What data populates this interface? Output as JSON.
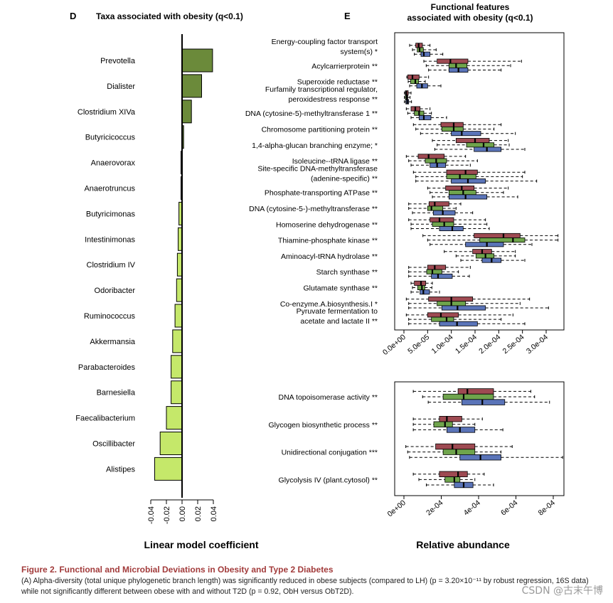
{
  "figure": {
    "caption_title": "Figure 2. Functional and Microbial Deviations in Obesity and Type 2 Diabetes",
    "caption_text": "(A) Alpha-diversity (total unique phylogenetic branch length) was significantly reduced in obese subjects (compared to LH) (p = 3.20×10⁻¹¹ by robust regression, 16S data) while not significantly different between obese with and without T2D (p = 0.92, ObH versus ObT2D).",
    "watermark": "CSDN @古末午博"
  },
  "colors": {
    "dark_green": "#6b8a3a",
    "light_green": "#c5e86a",
    "box_red": "#9e4a52",
    "box_green": "#6fa44c",
    "box_blue": "#5a74b8"
  },
  "chart_data": [
    {
      "type": "bar",
      "orientation": "horizontal",
      "panel_letter": "D",
      "title": "Taxa associated with obesity (q<0.1)",
      "xlabel": "Linear model coefficient",
      "xlim": [
        -0.045,
        0.045
      ],
      "xticks": [
        -0.04,
        -0.02,
        0.0,
        0.02,
        0.04
      ],
      "xtick_labels": [
        "-0.04",
        "-0.02",
        "0.00",
        "0.02",
        "0.04"
      ],
      "categories": [
        "Prevotella",
        "Dialister",
        "Clostridium XIVa",
        "Butyricicoccus",
        "Anaerovorax",
        "Anaerotruncus",
        "Butyricimonas",
        "Intestinimonas",
        "Clostridium IV",
        "Odoribacter",
        "Ruminococcus",
        "Akkermansia",
        "Parabacteroides",
        "Barnesiella",
        "Faecalibacterium",
        "Oscillibacter",
        "Alistipes"
      ],
      "values": [
        0.039,
        0.025,
        0.012,
        0.002,
        -0.001,
        -0.001,
        -0.004,
        -0.005,
        -0.006,
        -0.007,
        -0.009,
        -0.012,
        -0.014,
        -0.014,
        -0.02,
        -0.028,
        -0.035
      ]
    },
    {
      "type": "boxplot",
      "panel_letter": "E",
      "title": "Functional features\nassociated with obesity (q<0.1)",
      "xlabel": "",
      "xlim": [
        0,
        0.00032
      ],
      "xticks": [
        0,
        5e-05,
        0.0001,
        0.00015,
        0.0002,
        0.00025,
        0.0003
      ],
      "xtick_labels": [
        "0.0e+00",
        "5.0e-05",
        "1.0e-04",
        "1.5e-04",
        "2.0e-04",
        "2.5e-04",
        "3.0e-04"
      ],
      "groups": [
        "red",
        "green",
        "blue"
      ],
      "features": [
        {
          "label": "Energy-coupling factor transport\nsystem(s) *",
          "boxes": [
            [
              1.2e-05,
              2.5e-05,
              3.1e-05,
              3.9e-05,
              5.5e-05
            ],
            [
              1.8e-05,
              2.8e-05,
              3.3e-05,
              4.1e-05,
              6.8e-05
            ],
            [
              2.2e-05,
              3.6e-05,
              4.2e-05,
              5.5e-05,
              8.2e-05
            ]
          ]
        },
        {
          "label": "Acylcarrierprotein **",
          "boxes": [
            [
              4.2e-05,
              7e-05,
              9.8e-05,
              0.000135,
              0.000248
            ],
            [
              4.7e-05,
              9.5e-05,
              0.00011,
              0.000133,
              0.000225
            ],
            [
              5.2e-05,
              9.5e-05,
              0.000115,
              0.000135,
              0.000205
            ]
          ]
        },
        {
          "label": "Superoxide reductase **",
          "boxes": [
            [
              6e-06,
              8e-06,
              1.8e-05,
              3.2e-05,
              5.2e-05
            ],
            [
              9e-06,
              1.4e-05,
              2.4e-05,
              3.1e-05,
              4.5e-05
            ],
            [
              1.2e-05,
              2.7e-05,
              3.8e-05,
              5e-05,
              7.8e-05
            ]
          ]
        },
        {
          "label": "Furfamily transcriptional regulator,\nperoxidestress response **",
          "boxes": [
            [
              1e-06,
              3e-06,
              5e-06,
              9e-06,
              1.5e-05
            ],
            [
              1e-06,
              3e-06,
              6e-06,
              8e-06,
              1.3e-05
            ],
            [
              1e-06,
              4e-06,
              7e-06,
              1e-05,
              1.6e-05
            ]
          ]
        },
        {
          "label": "DNA (cytosine-5)-methyltransferase 1 **",
          "boxes": [
            [
              5e-06,
              1.5e-05,
              2.4e-05,
              3.4e-05,
              5.5e-05
            ],
            [
              8e-06,
              2.2e-05,
              3.2e-05,
              4.2e-05,
              5.8e-05
            ],
            [
              1.5e-05,
              3.2e-05,
              4.2e-05,
              5.7e-05,
              9e-05
            ]
          ]
        },
        {
          "label": "Chromosome partitioning protein **",
          "boxes": [
            [
              2e-05,
              7.8e-05,
              0.000105,
              0.000125,
              0.000205
            ],
            [
              2.5e-05,
              8e-05,
              0.000105,
              0.000125,
              0.00019
            ],
            [
              3.5e-05,
              0.0001,
              0.000122,
              0.000162,
              0.000235
            ]
          ]
        },
        {
          "label": "1,4-alpha-glucan branching enzyme; *",
          "boxes": [
            [
              6e-05,
              0.00011,
              0.00015,
              0.00018,
              0.00022
            ],
            [
              7e-05,
              0.000132,
              0.000168,
              0.00019,
              0.000222
            ],
            [
              6.5e-05,
              0.000148,
              0.000175,
              0.000205,
              0.000255
            ]
          ]
        },
        {
          "label": "Isoleucine--tRNA ligase **",
          "boxes": [
            [
              5e-06,
              3e-05,
              5.2e-05,
              8.5e-05,
              0.00013
            ],
            [
              1e-05,
              4.5e-05,
              6.8e-05,
              9e-05,
              0.000155
            ],
            [
              1.5e-05,
              5.5e-05,
              7e-05,
              8.8e-05,
              0.00014
            ]
          ]
        },
        {
          "label": "Site-specific DNA-methyltransferase\n(adenine-specific) **",
          "boxes": [
            [
              2e-05,
              9e-05,
              0.00013,
              0.000155,
              0.000255
            ],
            [
              2.5e-05,
              9e-05,
              0.000118,
              0.000152,
              0.00025
            ],
            [
              2.5e-05,
              0.0001,
              0.000135,
              0.000172,
              0.00028
            ]
          ]
        },
        {
          "label": "Phosphate-transporting ATPase **",
          "boxes": [
            [
              5e-05,
              8.8e-05,
              0.000122,
              0.000148,
              0.00022
            ],
            [
              5.5e-05,
              9.5e-05,
              0.000125,
              0.000152,
              0.00021
            ],
            [
              6e-05,
              9.5e-05,
              0.00013,
              0.000175,
              0.00024
            ]
          ]
        },
        {
          "label": "DNA (cytosine-5-)-methyltransferase **",
          "boxes": [
            [
              1e-05,
              5.3e-05,
              6.5e-05,
              9.5e-05,
              0.00012
            ],
            [
              1e-05,
              5e-05,
              5.8e-05,
              8.2e-05,
              0.00011
            ],
            [
              1.8e-05,
              6.2e-05,
              8.2e-05,
              0.000108,
              0.000145
            ]
          ]
        },
        {
          "label": "Homoserine dehydrogenase **",
          "boxes": [
            [
              1e-05,
              5.5e-05,
              7.5e-05,
              0.000105,
              0.000172
            ],
            [
              1.5e-05,
              6e-05,
              8.5e-05,
              0.000105,
              0.000175
            ],
            [
              1.5e-05,
              7.5e-05,
              0.000102,
              0.000125,
              0.00018
            ]
          ]
        },
        {
          "label": "Thiamine-phosphate kinase **",
          "boxes": [
            [
              4e-05,
              0.000148,
              0.00021,
              0.000245,
              0.000325
            ],
            [
              5e-05,
              0.00016,
              0.00023,
              0.000255,
              0.000325
            ],
            [
              5.5e-05,
              0.00013,
              0.000175,
              0.00021,
              0.00027
            ]
          ]
        },
        {
          "label": "Aminoacyl-tRNA hydrolase **",
          "boxes": [
            [
              8.5e-05,
              0.000145,
              0.000165,
              0.000185,
              0.000235
            ],
            [
              0.00011,
              0.000152,
              0.000172,
              0.00019,
              0.000235
            ],
            [
              0.00012,
              0.000165,
              0.000185,
              0.000205,
              0.000255
            ]
          ]
        },
        {
          "label": "Starch synthase **",
          "boxes": [
            [
              1e-05,
              5e-05,
              6.5e-05,
              8.8e-05,
              0.00014
            ],
            [
              1e-05,
              4.8e-05,
              6e-05,
              8e-05,
              0.000115
            ],
            [
              1e-05,
              5.8e-05,
              7.2e-05,
              0.000102,
              0.000138
            ]
          ]
        },
        {
          "label": "Glutamate synthase **",
          "boxes": [
            [
              1.5e-05,
              2.2e-05,
              3.6e-05,
              4.6e-05,
              6e-05
            ],
            [
              1.8e-05,
              2.9e-05,
              3.8e-05,
              4.4e-05,
              5.9e-05
            ],
            [
              1.5e-05,
              3.4e-05,
              4.1e-05,
              5.4e-05,
              7.5e-05
            ]
          ]
        },
        {
          "label": "Co-enzyme.A.biosynthesis.I *",
          "boxes": [
            [
              5e-06,
              5.2e-05,
              0.0001,
              0.000145,
              0.000265
            ],
            [
              1e-05,
              7e-05,
              0.0001,
              0.00013,
              0.000245
            ],
            [
              1e-05,
              8e-05,
              0.000113,
              0.000172,
              0.000305
            ]
          ]
        },
        {
          "label": "Pyruvate fermentation to\nacetate and lactate II **",
          "boxes": [
            [
              5e-06,
              5e-05,
              7.8e-05,
              0.000115,
              0.00023
            ],
            [
              1e-05,
              5.8e-05,
              9e-05,
              0.000105,
              0.000205
            ],
            [
              1e-05,
              7.5e-05,
              0.000112,
              0.000155,
              0.000255
            ]
          ]
        }
      ]
    },
    {
      "type": "boxplot",
      "panel_letter": "",
      "title": "",
      "xlabel": "Relative abundance",
      "xlim": [
        0,
        0.00086
      ],
      "xticks": [
        0,
        0.0002,
        0.0004,
        0.0006,
        0.0008
      ],
      "xtick_labels": [
        "0e+00",
        "2e-04",
        "4e-04",
        "6e-04",
        "8e-04"
      ],
      "groups": [
        "red",
        "green",
        "blue"
      ],
      "features": [
        {
          "label": "DNA topoisomerase activity **",
          "boxes": [
            [
              5e-05,
              0.00029,
              0.00034,
              0.00048,
              0.00068
            ],
            [
              0.0001,
              0.00021,
              0.00032,
              0.00048,
              0.0007
            ],
            [
              0.00013,
              0.00031,
              0.00042,
              0.00054,
              0.00078
            ]
          ]
        },
        {
          "label": "Glycogen biosynthetic process **",
          "boxes": [
            [
              5e-05,
              0.00019,
              0.00023,
              0.00031,
              0.00042
            ],
            [
              5e-05,
              0.00016,
              0.00022,
              0.00026,
              0.00038
            ],
            [
              5e-05,
              0.00023,
              0.0003,
              0.00038,
              0.00053
            ]
          ]
        },
        {
          "label": "Unidirectional conjugation ***",
          "boxes": [
            [
              1e-05,
              0.00017,
              0.00026,
              0.00038,
              0.00058
            ],
            [
              2e-05,
              0.00021,
              0.00028,
              0.00038,
              0.00052
            ],
            [
              3e-05,
              0.0003,
              0.00041,
              0.00052,
              0.00085
            ]
          ]
        },
        {
          "label": "Glycolysis IV (plant.cytosol) **",
          "boxes": [
            [
              5e-05,
              0.00019,
              0.00029,
              0.00034,
              0.00043
            ],
            [
              8e-05,
              0.00022,
              0.00027,
              0.0003,
              0.00038
            ],
            [
              0.00012,
              0.00027,
              0.00032,
              0.00037,
              0.00048
            ]
          ]
        }
      ]
    }
  ]
}
